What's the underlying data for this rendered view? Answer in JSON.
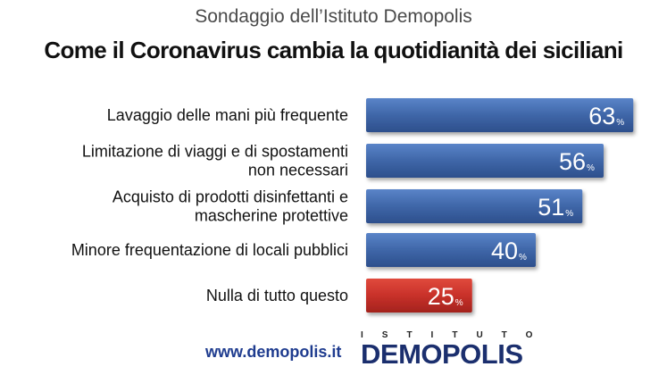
{
  "header": {
    "subtitle": "Sondaggio dell’Istituto Demopolis",
    "title": "Come il Coronavirus cambia la quotidianità dei siciliani"
  },
  "footer": {
    "website": "www.demopolis.it",
    "logo_top": "ISTITUTO",
    "logo_main": "DEMOPOLIS"
  },
  "colors": {
    "bar": "#3f66a8",
    "bar_highlight": "#c8312a"
  },
  "chart_data": {
    "type": "bar",
    "orientation": "horizontal",
    "categories": [
      [
        "Lavaggio delle mani più frequente"
      ],
      [
        "Limitazione di viaggi e di spostamenti",
        "non necessari"
      ],
      [
        "Acquisto di prodotti disinfettanti e",
        "mascherine protettive"
      ],
      [
        "Minore frequentazione di locali pubblici"
      ],
      [
        "Nulla di tutto questo"
      ]
    ],
    "values": [
      63,
      56,
      51,
      40,
      25
    ],
    "unit": "%",
    "highlight_index": 4,
    "xlim": [
      0,
      100
    ]
  }
}
